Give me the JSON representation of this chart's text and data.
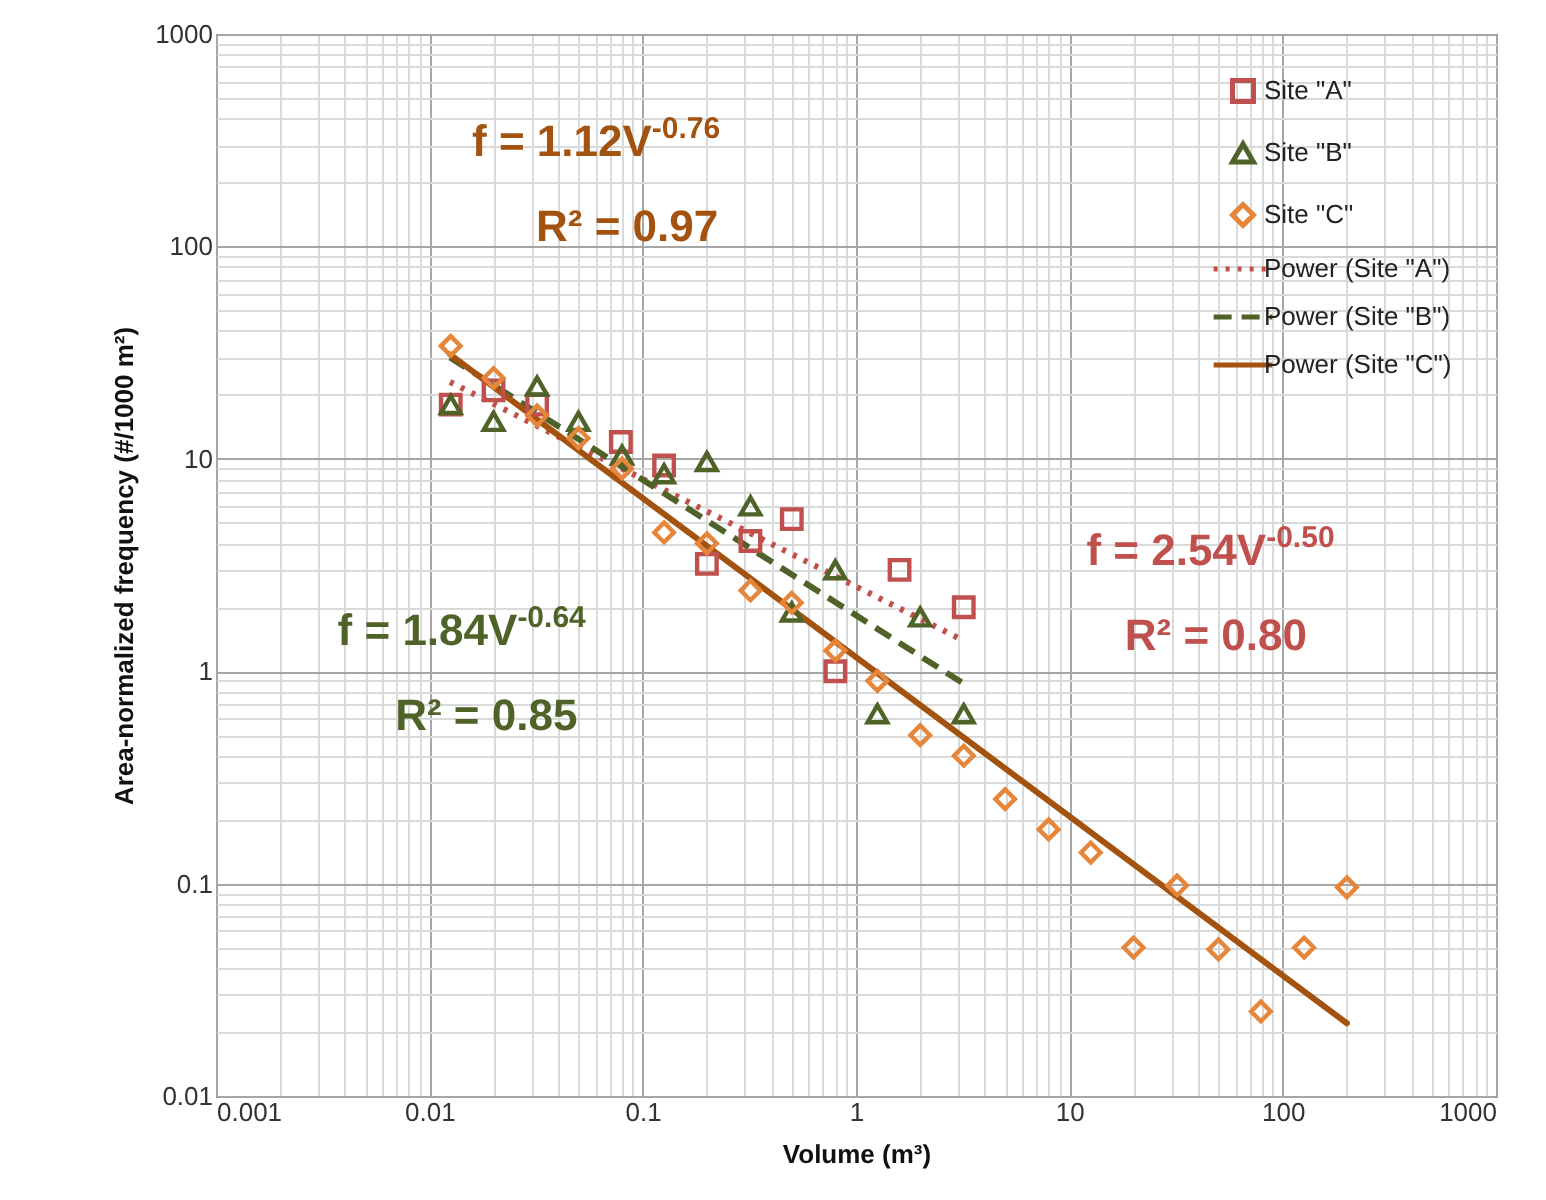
{
  "chart_data": {
    "type": "scatter",
    "xlabel": "Volume (m³)",
    "ylabel": "Area-normalized frequency (#/1000 m²)",
    "log": "xy",
    "grid": true,
    "legend": "top right",
    "xlim": [
      0.001,
      1000
    ],
    "xticks": [
      0.001,
      0.01,
      0.1,
      1,
      10,
      100,
      1000
    ],
    "ylim": [
      0.01,
      1000
    ],
    "yticks": [
      0.01,
      0.1,
      1,
      10,
      100,
      1000
    ],
    "annotations": [
      "f = 1.12V$^{-0.76}$",
      "R² = 0.97",
      "f = 1.84V$^{-0.64}$",
      "R² = 0.85",
      "f = 2.54V$^{-0.50}$",
      "R² = 0.80"
    ],
    "series": [
      {
        "name": "Site \"A\"",
        "type": "scatter",
        "marker": "square",
        "color": "#c0504d",
        "x": [
          0.0126,
          0.02,
          0.032,
          0.079,
          0.126,
          0.2,
          0.32,
          0.5,
          0.8,
          1.6,
          3.2
        ],
        "values": [
          18,
          21,
          18,
          12,
          9.3,
          3.2,
          4.1,
          5.2,
          1.0,
          3.0,
          2.0
        ]
      },
      {
        "name": "Site \"B\"",
        "type": "scatter",
        "marker": "triangle",
        "color": "#4f6228",
        "x": [
          0.0126,
          0.02,
          0.032,
          0.05,
          0.08,
          0.126,
          0.2,
          0.32,
          0.5,
          0.8,
          1.26,
          2,
          3.2
        ],
        "values": [
          18,
          15,
          22,
          15,
          10.4,
          8.5,
          9.7,
          6.0,
          1.9,
          3.0,
          0.63,
          1.8,
          0.63
        ]
      },
      {
        "name": "Site \"C\"",
        "type": "scatter",
        "marker": "diamond",
        "color": "#e6863a",
        "x": [
          0.0126,
          0.02,
          0.032,
          0.05,
          0.08,
          0.126,
          0.2,
          0.32,
          0.5,
          0.8,
          1.26,
          2,
          3.2,
          5,
          8,
          12.6,
          20,
          32,
          50,
          79,
          126,
          200
        ],
        "values": [
          34,
          24,
          16,
          12.5,
          9.0,
          4.5,
          4.0,
          2.4,
          2.1,
          1.25,
          0.9,
          0.5,
          0.4,
          0.25,
          0.18,
          0.14,
          0.05,
          0.098,
          0.049,
          0.025,
          0.05,
          0.096
        ]
      },
      {
        "name": "Power (Site \"A\")",
        "type": "line",
        "line_style": "dotted",
        "marker": "none",
        "color": "#c0504d",
        "x": [
          0.0125,
          3.16
        ],
        "values": [
          23,
          1.4
        ]
      },
      {
        "name": "Power (Site \"B\")",
        "type": "line",
        "line_style": "dashed",
        "marker": "none",
        "color": "#4f6228",
        "x": [
          0.0125,
          3.16
        ],
        "values": [
          30,
          0.88
        ]
      },
      {
        "name": "Power (Site \"C\")",
        "type": "line",
        "line_style": "solid",
        "marker": "none",
        "color": "#a3530f",
        "x": [
          0.0125,
          200
        ],
        "values": [
          31,
          0.022
        ]
      }
    ]
  }
}
